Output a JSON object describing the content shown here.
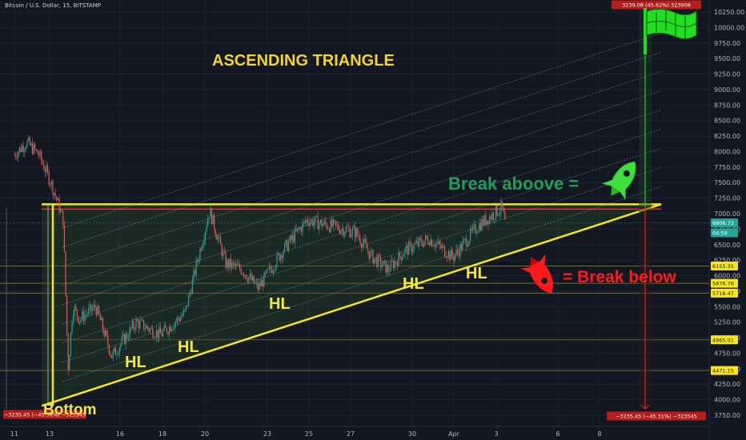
{
  "header": {
    "symbol": "Bitcoin / U.S. Dollar, 15, BITSTAMP"
  },
  "colors": {
    "background": "#131722",
    "axis_text": "#b2b5be",
    "triangle": "#f5e71a",
    "channel": "#8c8f98",
    "bull": "#26a69a",
    "bear": "#ef5350",
    "break_above": "#1f9e5a",
    "break_below": "#ff1a1a",
    "flag": "#22dd22"
  },
  "annotations": {
    "title": "ASCENDING TRIANGLE",
    "hl1": "HL",
    "hl2": "HL",
    "hl3": "HL",
    "hl4": "HL",
    "hl5": "HL",
    "bottom": "Bottom",
    "break_above": "Break aboove =",
    "break_below": "= Break below"
  },
  "icons": {
    "rocket_up": "green-rocket-icon",
    "rocket_down": "red-rocket-icon",
    "flag": "checkered-flag-icon"
  },
  "chart_data": {
    "type": "candlestick",
    "title": "ASCENDING TRIANGLE",
    "ylim": [
      3625,
      10400
    ],
    "y_ticks": [
      3750,
      4000,
      4250,
      4500,
      4750,
      5000,
      5250,
      5500,
      5750,
      6000,
      6250,
      6500,
      6750,
      7000,
      7250,
      7500,
      7750,
      8000,
      8250,
      8500,
      8750,
      9000,
      9250,
      9500,
      9750,
      10000,
      10250
    ],
    "x_ticks": [
      "11",
      "13",
      "16",
      "18",
      "20",
      "23",
      "25",
      "27",
      "30",
      "Apr",
      "3",
      "6",
      "8"
    ],
    "price_path": [
      {
        "x": "11",
        "y": 7950
      },
      {
        "x": "11.5",
        "y": 8150
      },
      {
        "x": "12",
        "y": 7950
      },
      {
        "x": "12.5",
        "y": 7500
      },
      {
        "x": "13",
        "y": 6900
      },
      {
        "x": "13.3",
        "y": 4500
      },
      {
        "x": "13.6",
        "y": 5500
      },
      {
        "x": "14",
        "y": 5300
      },
      {
        "x": "15",
        "y": 5500
      },
      {
        "x": "16",
        "y": 4700
      },
      {
        "x": "17",
        "y": 5250
      },
      {
        "x": "18",
        "y": 5050
      },
      {
        "x": "19",
        "y": 5400
      },
      {
        "x": "20",
        "y": 7050
      },
      {
        "x": "21",
        "y": 6200
      },
      {
        "x": "22",
        "y": 6100
      },
      {
        "x": "23",
        "y": 5800
      },
      {
        "x": "24",
        "y": 6400
      },
      {
        "x": "25",
        "y": 6900
      },
      {
        "x": "26",
        "y": 6800
      },
      {
        "x": "27",
        "y": 6700
      },
      {
        "x": "28",
        "y": 6300
      },
      {
        "x": "29",
        "y": 6100
      },
      {
        "x": "30",
        "y": 6400
      },
      {
        "x": "31",
        "y": 6600
      },
      {
        "x": "Apr",
        "y": 6300
      },
      {
        "x": "2",
        "y": 6800
      },
      {
        "x": "3",
        "y": 7100
      },
      {
        "x": "3.2",
        "y": 6820
      }
    ],
    "triangle": {
      "resistance": 7150,
      "support_start": 3900,
      "support_end": 7150
    },
    "target_up": 10350,
    "target_down": 3850,
    "price_labels": [
      {
        "value": "6155.35",
        "bg": "#f5e71a",
        "fg": "#131722",
        "y": 6155
      },
      {
        "value": "5876.76",
        "bg": "#f5e71a",
        "fg": "#131722",
        "y": 5876
      },
      {
        "value": "5718.47",
        "bg": "#f5e71a",
        "fg": "#131722",
        "y": 5718
      },
      {
        "value": "4965.01",
        "bg": "#f5e71a",
        "fg": "#131722",
        "y": 4965
      },
      {
        "value": "4471.15",
        "bg": "#f5e71a",
        "fg": "#131722",
        "y": 4471
      },
      {
        "value": "6806.73",
        "bg": "#26a69a",
        "fg": "#ffffff",
        "y": 6850
      },
      {
        "value": "04:59",
        "bg": "#26a69a",
        "fg": "#ffffff",
        "y": 6690
      }
    ],
    "measure_up_label": "3239.08 (45.62%) 323908",
    "measure_down_label": "−3235.45 (−45.31%) −323545",
    "measure_left_label": "−3235.45 (−45.38%) −323545"
  }
}
